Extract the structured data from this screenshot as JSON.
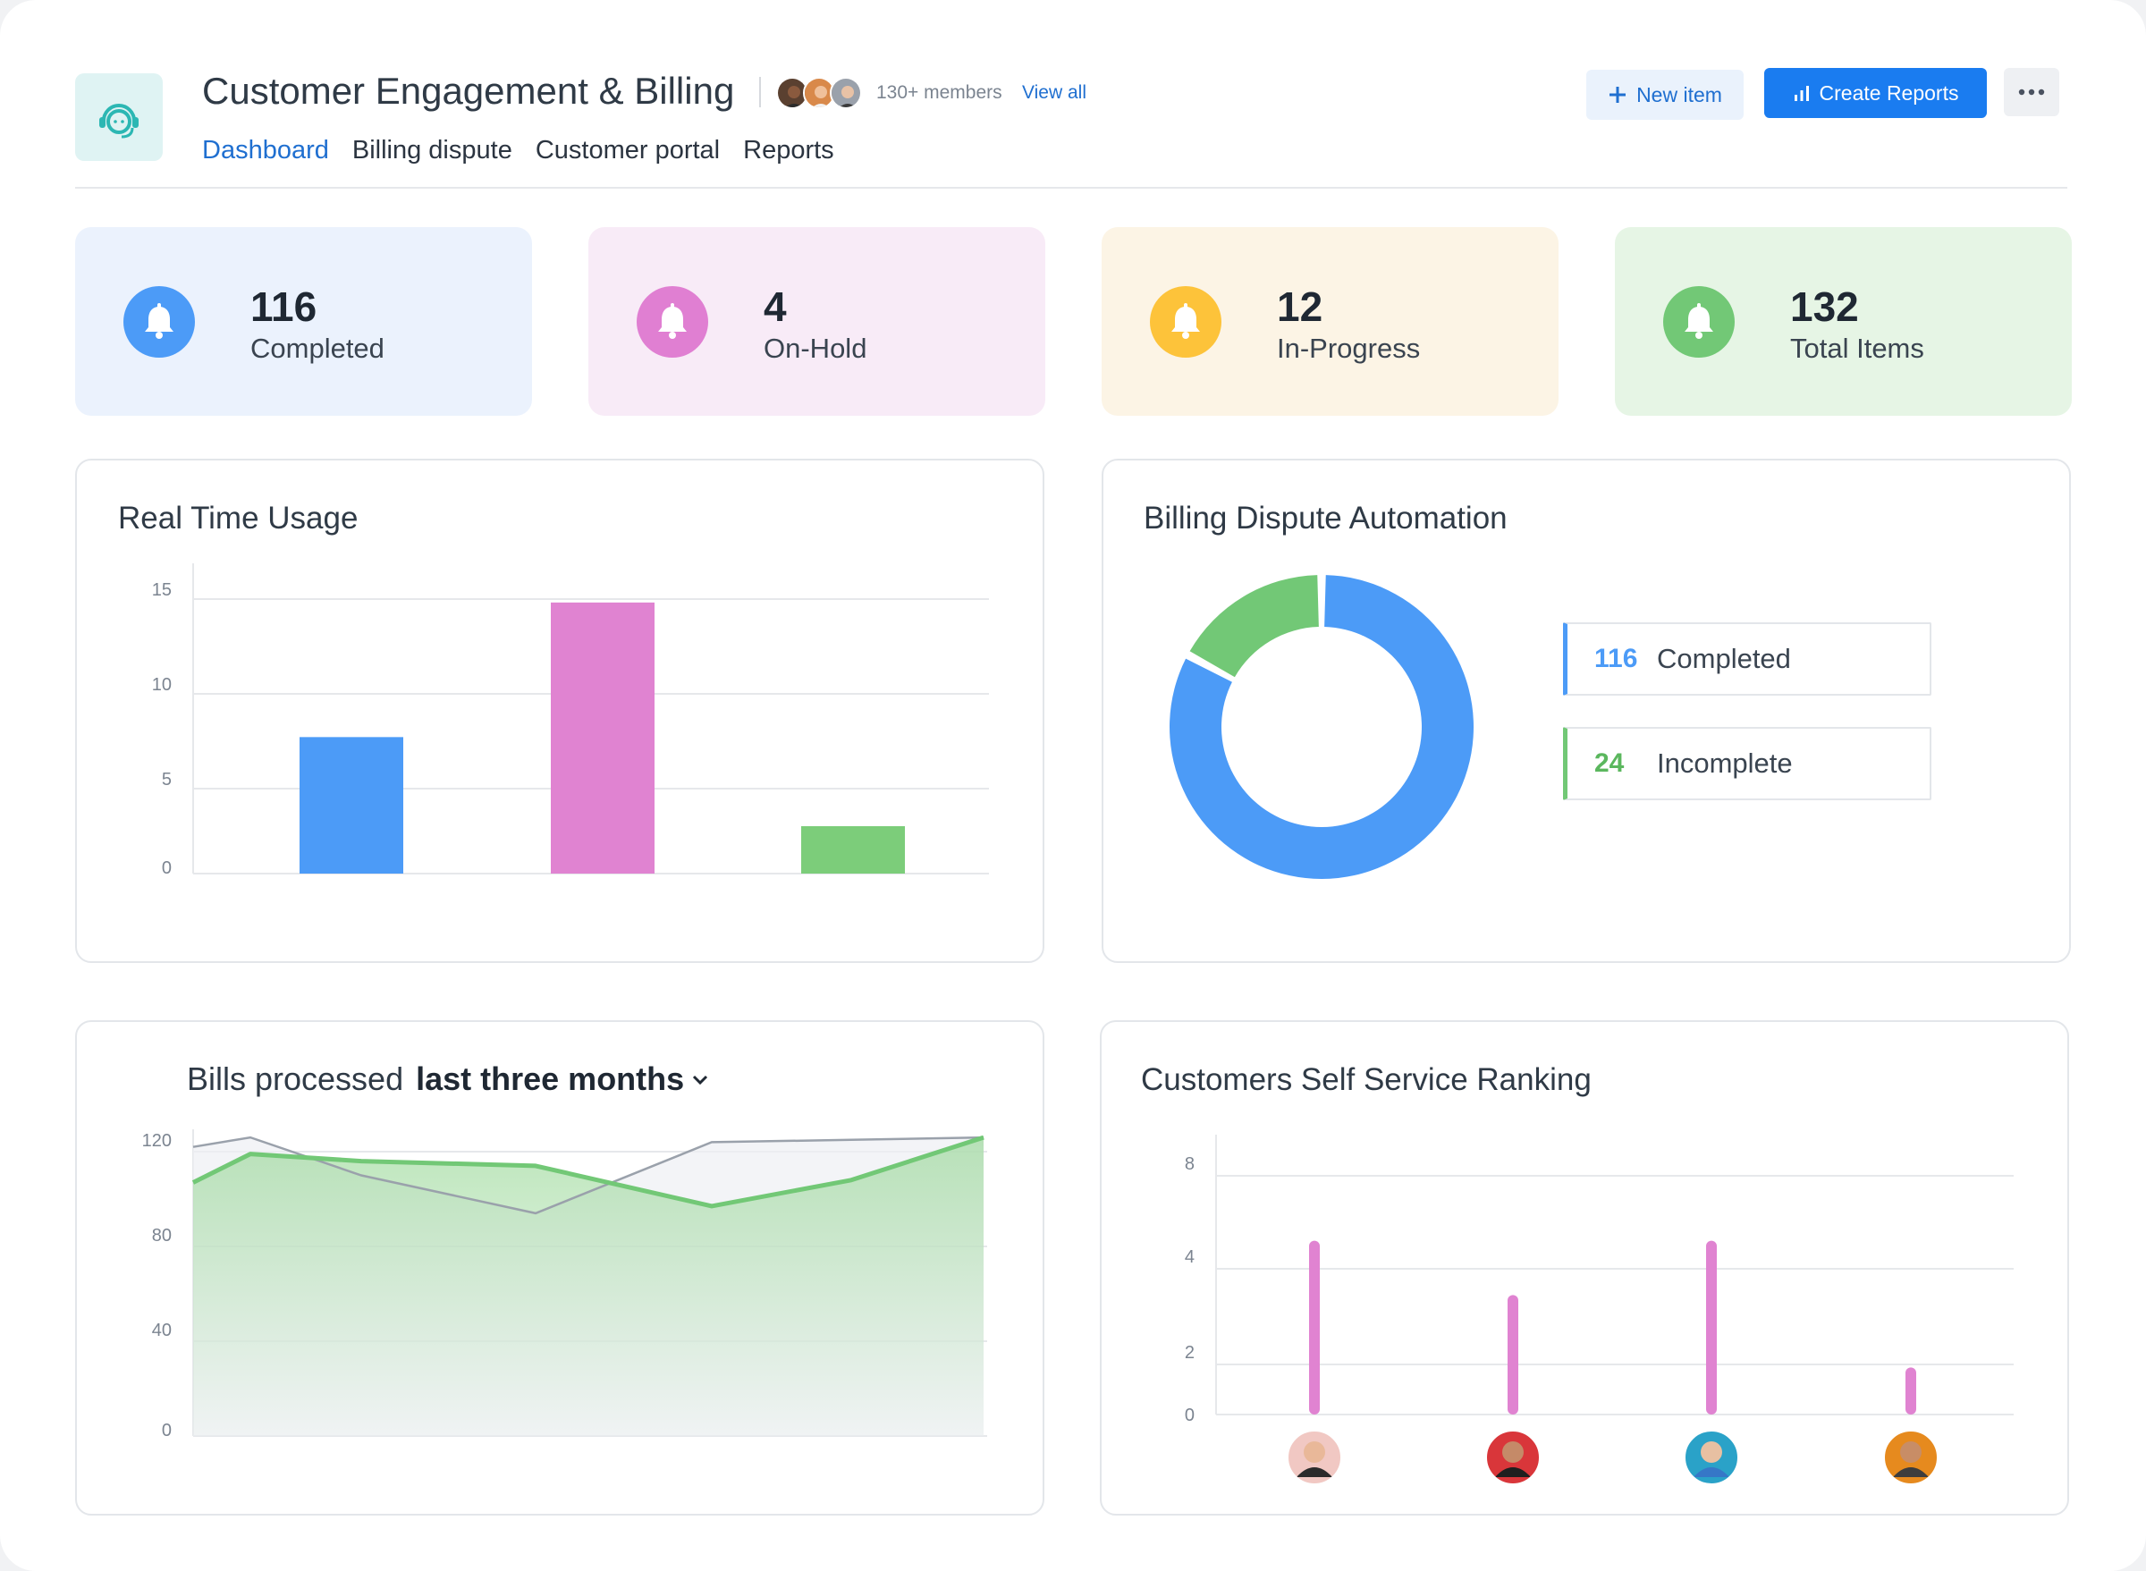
{
  "header": {
    "title": "Customer Engagement & Billing",
    "members_text": "130+ members",
    "view_all": "View all",
    "new_item_label": "New item",
    "create_reports_label": "Create Reports",
    "more_icon": "more-horizontal-icon",
    "logo_icon": "support-agent-icon"
  },
  "nav": {
    "tabs": [
      {
        "label": "Dashboard",
        "active": true
      },
      {
        "label": "Billing dispute",
        "active": false
      },
      {
        "label": "Customer portal",
        "active": false
      },
      {
        "label": "Reports",
        "active": false
      }
    ]
  },
  "stats": [
    {
      "value": "116",
      "label": "Completed",
      "bg": "#ebf2fd",
      "accent": "#4c9bf7",
      "icon": "bell-icon"
    },
    {
      "value": "4",
      "label": "On-Hold",
      "bg": "#f8ebf7",
      "accent": "#e07fd2",
      "icon": "bell-icon"
    },
    {
      "value": "12",
      "label": "In-Progress",
      "bg": "#fcf4e5",
      "accent": "#fdc33a",
      "icon": "bell-icon"
    },
    {
      "value": "132",
      "label": "Total Items",
      "bg": "#e6f5e5",
      "accent": "#72c876",
      "icon": "bell-icon"
    }
  ],
  "panels": {
    "real_time_usage": {
      "title": "Real Time Usage"
    },
    "billing_dispute": {
      "title": "Billing Dispute Automation",
      "legend": [
        {
          "value": "116",
          "label": "Completed",
          "color": "#4c9bf7"
        },
        {
          "value": "24",
          "label": "Incomplete",
          "color": "#72c876"
        }
      ]
    },
    "bills": {
      "title_prefix": "Bills processed",
      "range_label": "last three months"
    },
    "ranking": {
      "title": "Customers Self Service Ranking"
    }
  },
  "chart_data": [
    {
      "type": "bar",
      "title": "Real Time Usage",
      "categories": [
        "",
        "",
        ""
      ],
      "values": [
        7.2,
        14.3,
        2.5
      ],
      "colors": [
        "#4c9bf7",
        "#e083d1",
        "#7ccd7a"
      ],
      "yticks": [
        0,
        5,
        10,
        15
      ],
      "ylim": [
        0,
        16
      ],
      "grid": true
    },
    {
      "type": "pie",
      "title": "Billing Dispute Automation",
      "donut": true,
      "slices": [
        {
          "label": "Completed",
          "value": 116,
          "color": "#4c9bf7"
        },
        {
          "label": "Incomplete",
          "value": 24,
          "color": "#72c876"
        }
      ]
    },
    {
      "type": "area",
      "title": "Bills processed last three months",
      "x": [
        0,
        1,
        2,
        3,
        4,
        5,
        6
      ],
      "series": [
        {
          "values": [
            107,
            119,
            116,
            114,
            97,
            108,
            126
          ],
          "color": "#72c876"
        },
        {
          "values": [
            122,
            126,
            110,
            94,
            124,
            125,
            126
          ],
          "color": "#9aa1ab"
        }
      ],
      "yticks": [
        0,
        40,
        80,
        120
      ],
      "ylim": [
        0,
        128
      ],
      "grid": true
    },
    {
      "type": "bar",
      "title": "Customers Self Service Ranking",
      "categories": [
        "avatar-1",
        "avatar-2",
        "avatar-3",
        "avatar-4"
      ],
      "values": [
        4.8,
        3.3,
        4.8,
        1.3
      ],
      "color": "#e083d1",
      "yticks": [
        0,
        2,
        4,
        8
      ],
      "grid": true
    }
  ]
}
